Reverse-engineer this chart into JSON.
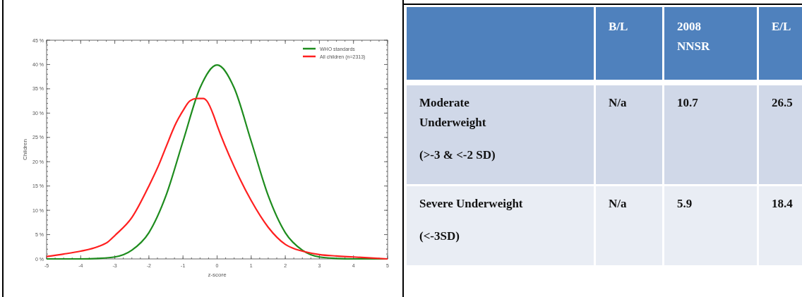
{
  "chart_data": [
    {
      "type": "line",
      "xlabel": "z-score",
      "ylabel": "Children",
      "xlim": [
        -5,
        5
      ],
      "ylim": [
        0,
        45
      ],
      "xticks": [
        -5,
        -4,
        -3,
        -2,
        -1,
        0,
        1,
        2,
        3,
        4,
        5
      ],
      "yticks": [
        {
          "value": 0,
          "label": "0 %"
        },
        {
          "value": 5,
          "label": "5 %"
        },
        {
          "value": 10,
          "label": "10 %"
        },
        {
          "value": 15,
          "label": "15 %"
        },
        {
          "value": 20,
          "label": "20 %"
        },
        {
          "value": 25,
          "label": "25 %"
        },
        {
          "value": 30,
          "label": "30 %"
        },
        {
          "value": 35,
          "label": "35 %"
        },
        {
          "value": 40,
          "label": "40 %"
        },
        {
          "value": 45,
          "label": "45 %"
        }
      ],
      "legend": "top right",
      "grid": false,
      "marker": "none",
      "line_style": "solid",
      "series": [
        {
          "name": "WHO standards",
          "color": "#1e8c1e",
          "x": [
            -5,
            -4,
            -3.5,
            -3,
            -2.5,
            -2,
            -1.5,
            -1,
            -0.5,
            0,
            0.5,
            1,
            1.5,
            2,
            2.5,
            3,
            3.5,
            4,
            5
          ],
          "values": [
            0,
            0,
            0.1,
            0.4,
            1.8,
            5.4,
            13,
            24.2,
            35.2,
            39.9,
            35.2,
            24.2,
            13,
            5.4,
            1.8,
            0.4,
            0.1,
            0,
            0
          ]
        },
        {
          "name": "All children (n=2313)",
          "color": "#ff2020",
          "x": [
            -5,
            -4.5,
            -4,
            -3.5,
            -3.2,
            -3,
            -2.5,
            -2,
            -1.7,
            -1.5,
            -1.2,
            -1,
            -0.8,
            -0.6,
            -0.4,
            -0.3,
            -0.1,
            0,
            0.5,
            1,
            1.5,
            2,
            2.3,
            2.5,
            3,
            3.5,
            4,
            5
          ],
          "values": [
            0.5,
            1,
            1.6,
            2.5,
            3.5,
            4.8,
            8.5,
            15,
            19.5,
            23,
            28,
            30.5,
            32.5,
            33,
            33,
            32.5,
            29.5,
            27.5,
            19,
            12,
            6.5,
            3,
            2,
            1.6,
            0.9,
            0.6,
            0.4,
            0
          ]
        }
      ]
    },
    {
      "type": "other",
      "categories": [
        "B/L",
        "2008\nNNSR",
        "E/L"
      ],
      "y_categories": [
        "Moderate\nUnderweight\n(>-3 & <-2 SD)",
        "Severe Underweight\n(<-3SD)"
      ],
      "cell_labels": [
        [
          "N/a",
          "10.7",
          "26.5"
        ],
        [
          "N/a",
          "5.9",
          "18.4"
        ]
      ]
    }
  ]
}
